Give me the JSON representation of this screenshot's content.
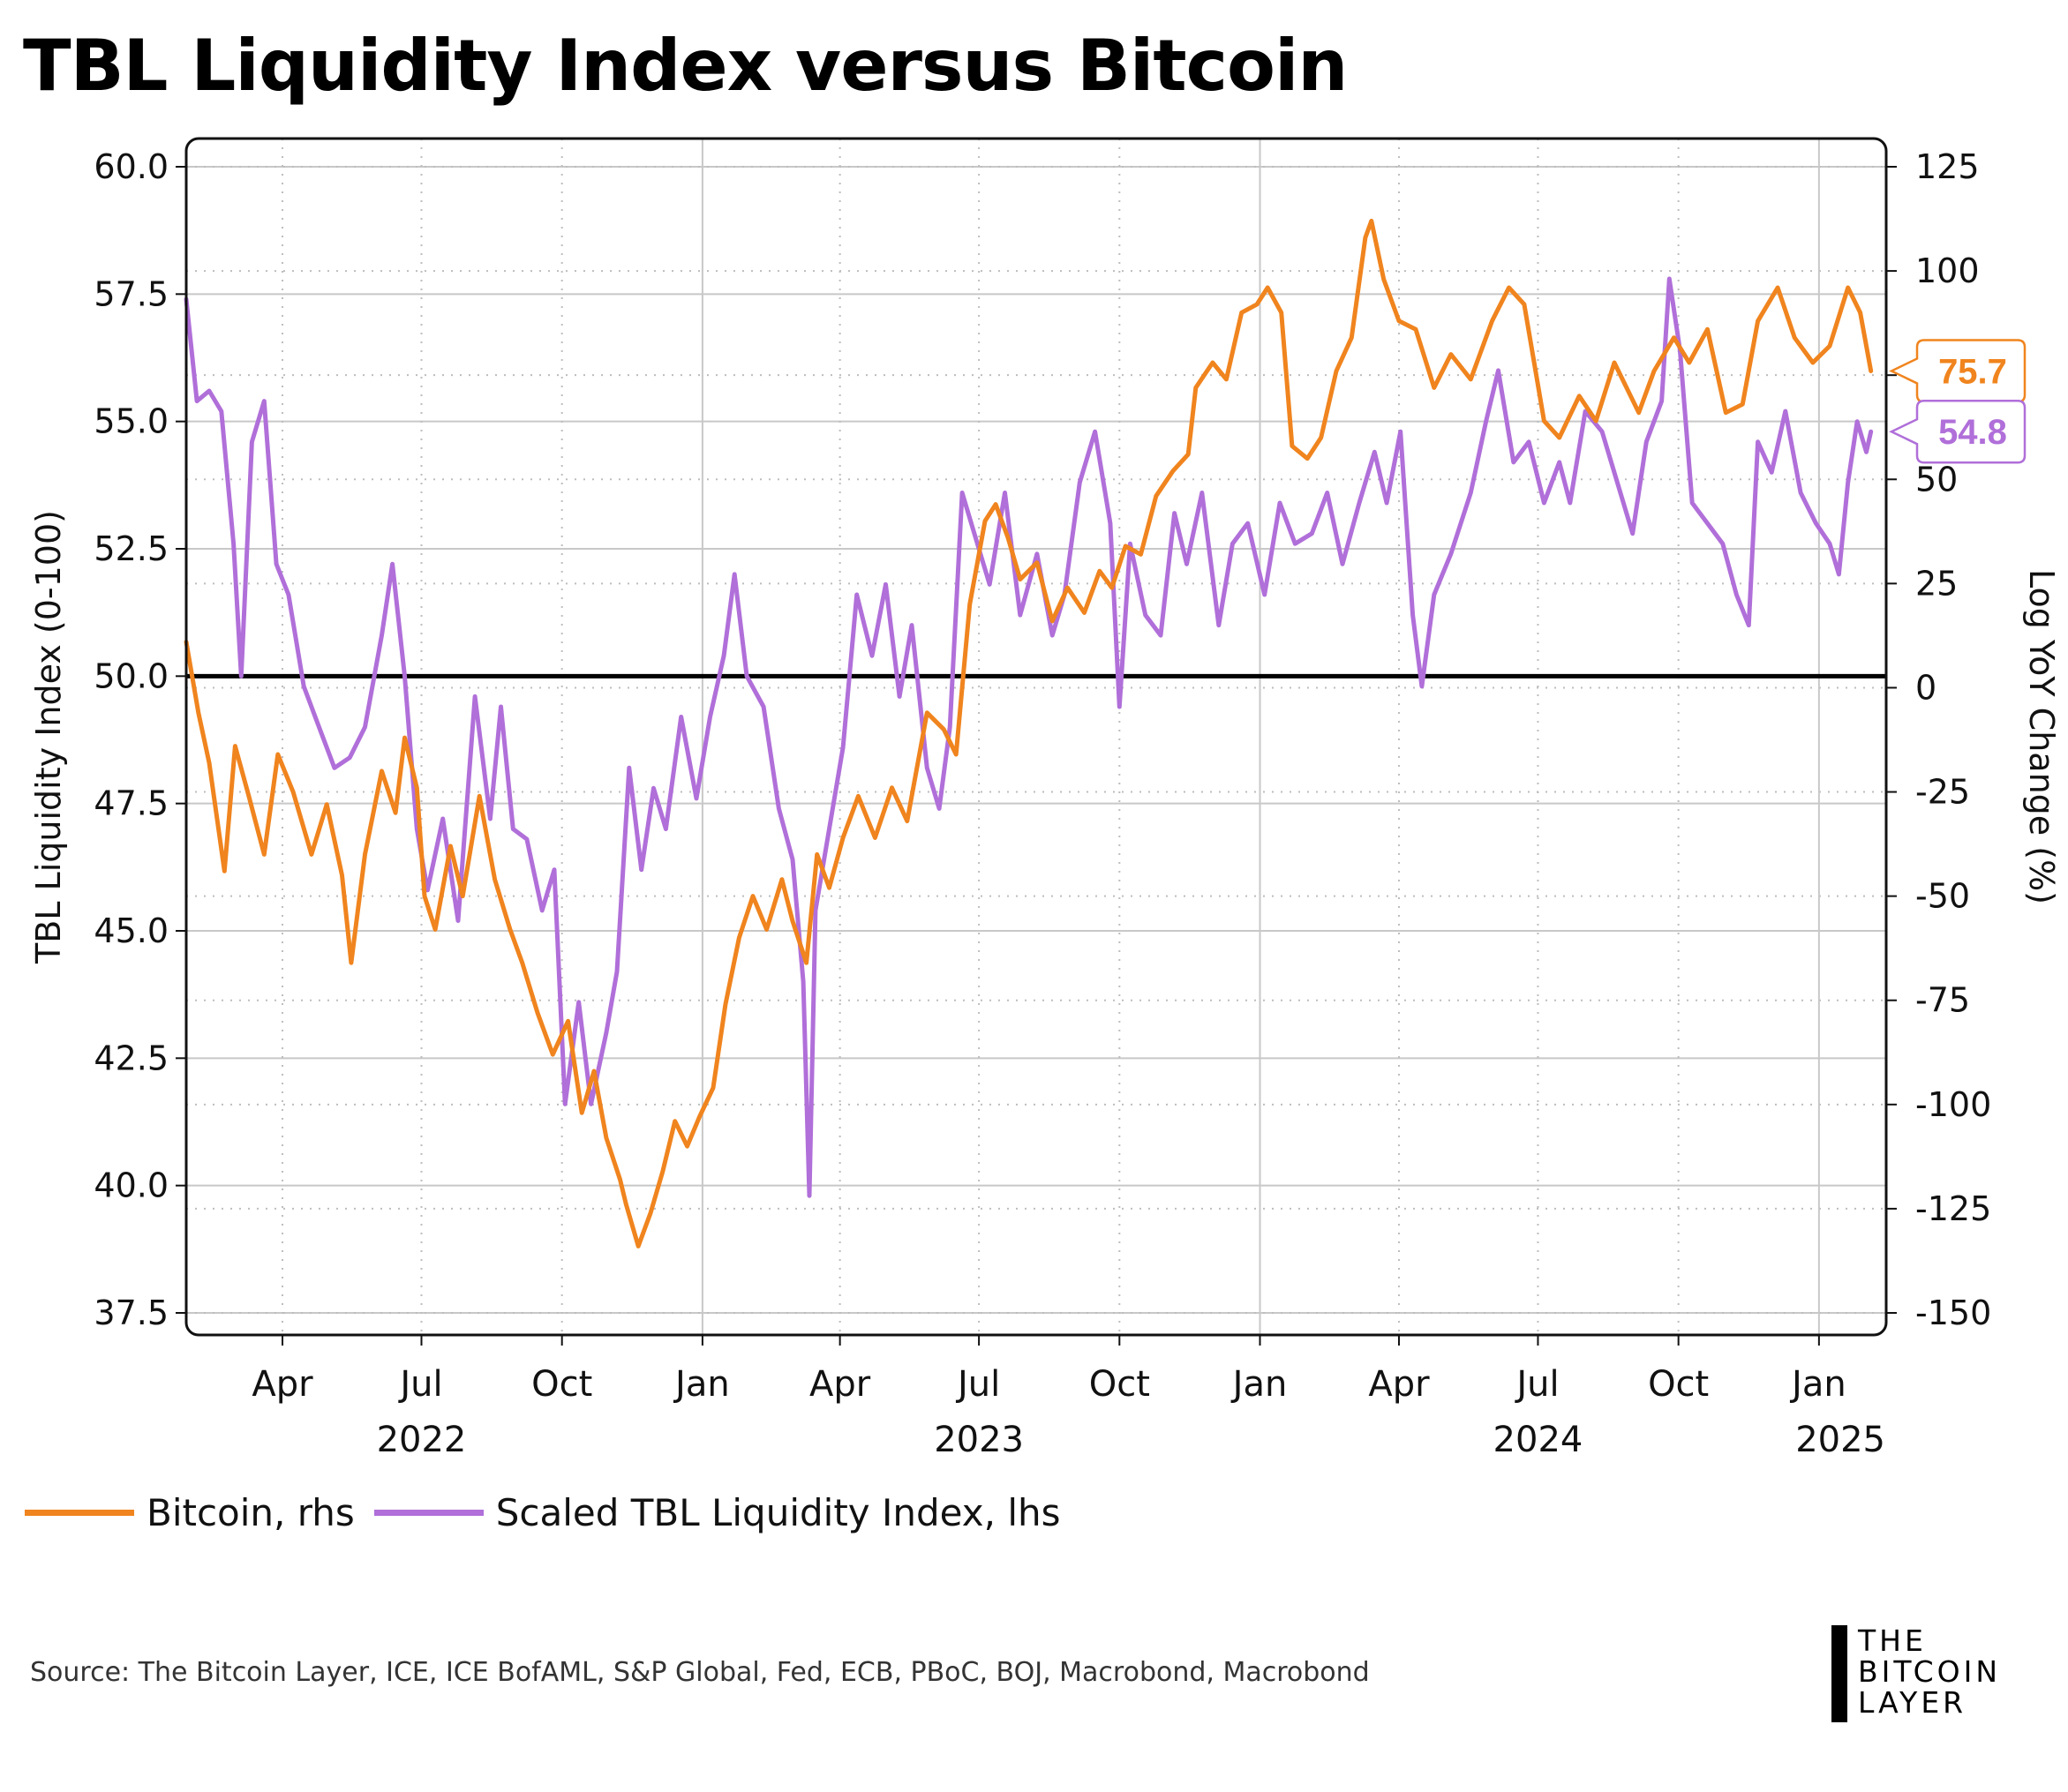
{
  "title": "TBL Liquidity Index versus Bitcoin",
  "legend": [
    {
      "label": "Bitcoin, rhs",
      "color": "#F0841E"
    },
    {
      "label": "Scaled TBL Liquidity Index, lhs",
      "color": "#B06FD9"
    }
  ],
  "source": "Source: The Bitcoin Layer, ICE, ICE BofAML, S&P Global, Fed, ECB, PBoC, BOJ, Macrobond, Macrobond",
  "logo": [
    "THE",
    "BITCOIN",
    "LAYER"
  ],
  "chart_data": {
    "type": "line",
    "title": "TBL Liquidity Index versus Bitcoin",
    "ylabel_left": "TBL Liquidity Index (0-100)",
    "ylabel_right": "Log YoY Change (%)",
    "ylim_left": [
      37.5,
      60.0
    ],
    "ylim_right": [
      -150,
      125
    ],
    "yticks_left": [
      "60.0",
      "57.5",
      "55.0",
      "52.5",
      "50.0",
      "47.5",
      "45.0",
      "42.5",
      "40.0",
      "37.5"
    ],
    "yticks_right": [
      "125",
      "100",
      "75",
      "50",
      "25",
      "0",
      "-25",
      "-50",
      "-75",
      "-100",
      "-125",
      "-150"
    ],
    "xlim": [
      "2022-01-28",
      "2025-02-14"
    ],
    "xticks": [
      {
        "date": "2022-04-01",
        "label": "Apr"
      },
      {
        "date": "2022-07-01",
        "label": "Jul"
      },
      {
        "date": "2022-10-01",
        "label": "Oct"
      },
      {
        "date": "2023-01-01",
        "label": "Jan"
      },
      {
        "date": "2023-04-01",
        "label": "Apr"
      },
      {
        "date": "2023-07-01",
        "label": "Jul"
      },
      {
        "date": "2023-10-01",
        "label": "Oct"
      },
      {
        "date": "2024-01-01",
        "label": "Jan"
      },
      {
        "date": "2024-04-01",
        "label": "Apr"
      },
      {
        "date": "2024-07-01",
        "label": "Jul"
      },
      {
        "date": "2024-10-01",
        "label": "Oct"
      },
      {
        "date": "2025-01-01",
        "label": "Jan"
      }
    ],
    "year_labels": [
      {
        "date": "2022-07-01",
        "label": "2022"
      },
      {
        "date": "2023-07-01",
        "label": "2023"
      },
      {
        "date": "2024-07-01",
        "label": "2024"
      },
      {
        "date": "2025-01-15",
        "label": "2025"
      }
    ],
    "reference_line": {
      "axis": "left",
      "value": 50.0
    },
    "grid": true,
    "legend_position": "bottom-left",
    "series": [
      {
        "name": "Bitcoin, rhs",
        "axis": "right",
        "color": "#F0841E",
        "last_value_label": "75.7",
        "points": [
          [
            "2022-01-28",
            11
          ],
          [
            "2022-02-05",
            -6
          ],
          [
            "2022-02-12",
            -18
          ],
          [
            "2022-02-22",
            -44
          ],
          [
            "2022-03-01",
            -14
          ],
          [
            "2022-03-10",
            -26
          ],
          [
            "2022-03-20",
            -40
          ],
          [
            "2022-03-29",
            -16
          ],
          [
            "2022-04-08",
            -25
          ],
          [
            "2022-04-20",
            -40
          ],
          [
            "2022-04-30",
            -28
          ],
          [
            "2022-05-10",
            -45
          ],
          [
            "2022-05-16",
            -66
          ],
          [
            "2022-05-25",
            -40
          ],
          [
            "2022-06-05",
            -20
          ],
          [
            "2022-06-14",
            -30
          ],
          [
            "2022-06-20",
            -12
          ],
          [
            "2022-06-28",
            -24
          ],
          [
            "2022-07-03",
            -50
          ],
          [
            "2022-07-10",
            -58
          ],
          [
            "2022-07-20",
            -38
          ],
          [
            "2022-07-28",
            -50
          ],
          [
            "2022-08-08",
            -26
          ],
          [
            "2022-08-18",
            -46
          ],
          [
            "2022-08-28",
            -58
          ],
          [
            "2022-09-05",
            -66
          ],
          [
            "2022-09-15",
            -78
          ],
          [
            "2022-09-25",
            -88
          ],
          [
            "2022-10-05",
            -80
          ],
          [
            "2022-10-14",
            -102
          ],
          [
            "2022-10-22",
            -92
          ],
          [
            "2022-10-30",
            -108
          ],
          [
            "2022-11-08",
            -118
          ],
          [
            "2022-11-12",
            -124
          ],
          [
            "2022-11-20",
            -134
          ],
          [
            "2022-11-28",
            -126
          ],
          [
            "2022-12-06",
            -116
          ],
          [
            "2022-12-14",
            -104
          ],
          [
            "2022-12-22",
            -110
          ],
          [
            "2022-12-30",
            -103
          ],
          [
            "2023-01-08",
            -96
          ],
          [
            "2023-01-16",
            -76
          ],
          [
            "2023-01-25",
            -60
          ],
          [
            "2023-02-03",
            -50
          ],
          [
            "2023-02-12",
            -58
          ],
          [
            "2023-02-22",
            -46
          ],
          [
            "2023-03-01",
            -56
          ],
          [
            "2023-03-10",
            -66
          ],
          [
            "2023-03-17",
            -40
          ],
          [
            "2023-03-25",
            -48
          ],
          [
            "2023-04-03",
            -36
          ],
          [
            "2023-04-13",
            -26
          ],
          [
            "2023-04-24",
            -36
          ],
          [
            "2023-05-05",
            -24
          ],
          [
            "2023-05-15",
            -32
          ],
          [
            "2023-05-28",
            -6
          ],
          [
            "2023-06-08",
            -10
          ],
          [
            "2023-06-16",
            -16
          ],
          [
            "2023-06-25",
            20
          ],
          [
            "2023-07-05",
            40
          ],
          [
            "2023-07-12",
            44
          ],
          [
            "2023-07-20",
            36
          ],
          [
            "2023-07-28",
            26
          ],
          [
            "2023-08-08",
            30
          ],
          [
            "2023-08-18",
            16
          ],
          [
            "2023-08-28",
            24
          ],
          [
            "2023-09-08",
            18
          ],
          [
            "2023-09-18",
            28
          ],
          [
            "2023-09-26",
            24
          ],
          [
            "2023-10-05",
            34
          ],
          [
            "2023-10-15",
            32
          ],
          [
            "2023-10-25",
            46
          ],
          [
            "2023-11-05",
            52
          ],
          [
            "2023-11-15",
            56
          ],
          [
            "2023-11-20",
            72
          ],
          [
            "2023-12-01",
            78
          ],
          [
            "2023-12-10",
            74
          ],
          [
            "2023-12-20",
            90
          ],
          [
            "2023-12-30",
            92
          ],
          [
            "2024-01-06",
            96
          ],
          [
            "2024-01-15",
            90
          ],
          [
            "2024-01-22",
            58
          ],
          [
            "2024-02-01",
            55
          ],
          [
            "2024-02-10",
            60
          ],
          [
            "2024-02-20",
            76
          ],
          [
            "2024-03-01",
            84
          ],
          [
            "2024-03-10",
            108
          ],
          [
            "2024-03-14",
            112
          ],
          [
            "2024-03-22",
            98
          ],
          [
            "2024-04-01",
            88
          ],
          [
            "2024-04-12",
            86
          ],
          [
            "2024-04-24",
            72
          ],
          [
            "2024-05-05",
            80
          ],
          [
            "2024-05-18",
            74
          ],
          [
            "2024-06-01",
            88
          ],
          [
            "2024-06-12",
            96
          ],
          [
            "2024-06-22",
            92
          ],
          [
            "2024-07-05",
            64
          ],
          [
            "2024-07-15",
            60
          ],
          [
            "2024-07-28",
            70
          ],
          [
            "2024-08-08",
            64
          ],
          [
            "2024-08-20",
            78
          ],
          [
            "2024-09-05",
            66
          ],
          [
            "2024-09-15",
            76
          ],
          [
            "2024-09-28",
            84
          ],
          [
            "2024-10-08",
            78
          ],
          [
            "2024-10-20",
            86
          ],
          [
            "2024-11-01",
            66
          ],
          [
            "2024-11-12",
            68
          ],
          [
            "2024-11-22",
            88
          ],
          [
            "2024-12-05",
            96
          ],
          [
            "2024-12-16",
            84
          ],
          [
            "2024-12-28",
            78
          ],
          [
            "2025-01-08",
            82
          ],
          [
            "2025-01-20",
            96
          ],
          [
            "2025-01-28",
            90
          ],
          [
            "2025-02-04",
            76
          ]
        ]
      },
      {
        "name": "Scaled TBL Liquidity Index, lhs",
        "axis": "left",
        "color": "#B06FD9",
        "last_value_label": "54.8",
        "points": [
          [
            "2022-01-28",
            57.4
          ],
          [
            "2022-02-04",
            55.4
          ],
          [
            "2022-02-12",
            55.6
          ],
          [
            "2022-02-20",
            55.2
          ],
          [
            "2022-02-28",
            52.6
          ],
          [
            "2022-03-05",
            50.0
          ],
          [
            "2022-03-12",
            54.6
          ],
          [
            "2022-03-20",
            55.4
          ],
          [
            "2022-03-28",
            52.2
          ],
          [
            "2022-04-05",
            51.6
          ],
          [
            "2022-04-15",
            49.8
          ],
          [
            "2022-04-25",
            49.0
          ],
          [
            "2022-05-05",
            48.2
          ],
          [
            "2022-05-15",
            48.4
          ],
          [
            "2022-05-25",
            49.0
          ],
          [
            "2022-06-05",
            50.8
          ],
          [
            "2022-06-12",
            52.2
          ],
          [
            "2022-06-20",
            50.0
          ],
          [
            "2022-06-28",
            47.0
          ],
          [
            "2022-07-05",
            45.8
          ],
          [
            "2022-07-15",
            47.2
          ],
          [
            "2022-07-25",
            45.2
          ],
          [
            "2022-08-05",
            49.6
          ],
          [
            "2022-08-15",
            47.2
          ],
          [
            "2022-08-22",
            49.4
          ],
          [
            "2022-08-30",
            47.0
          ],
          [
            "2022-09-08",
            46.8
          ],
          [
            "2022-09-18",
            45.4
          ],
          [
            "2022-09-26",
            46.2
          ],
          [
            "2022-10-03",
            41.6
          ],
          [
            "2022-10-12",
            43.6
          ],
          [
            "2022-10-20",
            41.6
          ],
          [
            "2022-10-30",
            43.0
          ],
          [
            "2022-11-06",
            44.2
          ],
          [
            "2022-11-14",
            48.2
          ],
          [
            "2022-11-22",
            46.2
          ],
          [
            "2022-11-30",
            47.8
          ],
          [
            "2022-12-08",
            47.0
          ],
          [
            "2022-12-18",
            49.2
          ],
          [
            "2022-12-28",
            47.6
          ],
          [
            "2023-01-06",
            49.2
          ],
          [
            "2023-01-15",
            50.4
          ],
          [
            "2023-01-22",
            52.0
          ],
          [
            "2023-01-30",
            50.0
          ],
          [
            "2023-02-10",
            49.4
          ],
          [
            "2023-02-20",
            47.4
          ],
          [
            "2023-03-01",
            46.4
          ],
          [
            "2023-03-08",
            44.0
          ],
          [
            "2023-03-12",
            39.8
          ],
          [
            "2023-03-16",
            45.4
          ],
          [
            "2023-03-25",
            47.0
          ],
          [
            "2023-04-03",
            48.6
          ],
          [
            "2023-04-12",
            51.6
          ],
          [
            "2023-04-22",
            50.4
          ],
          [
            "2023-05-01",
            51.8
          ],
          [
            "2023-05-10",
            49.6
          ],
          [
            "2023-05-18",
            51.0
          ],
          [
            "2023-05-28",
            48.2
          ],
          [
            "2023-06-05",
            47.4
          ],
          [
            "2023-06-12",
            49.0
          ],
          [
            "2023-06-20",
            53.6
          ],
          [
            "2023-06-28",
            52.8
          ],
          [
            "2023-07-08",
            51.8
          ],
          [
            "2023-07-18",
            53.6
          ],
          [
            "2023-07-28",
            51.2
          ],
          [
            "2023-08-08",
            52.4
          ],
          [
            "2023-08-18",
            50.8
          ],
          [
            "2023-08-26",
            51.6
          ],
          [
            "2023-09-05",
            53.8
          ],
          [
            "2023-09-15",
            54.8
          ],
          [
            "2023-09-25",
            53.0
          ],
          [
            "2023-10-01",
            49.4
          ],
          [
            "2023-10-08",
            52.6
          ],
          [
            "2023-10-18",
            51.2
          ],
          [
            "2023-10-28",
            50.8
          ],
          [
            "2023-11-06",
            53.2
          ],
          [
            "2023-11-14",
            52.2
          ],
          [
            "2023-11-24",
            53.6
          ],
          [
            "2023-12-05",
            51.0
          ],
          [
            "2023-12-14",
            52.6
          ],
          [
            "2023-12-24",
            53.0
          ],
          [
            "2024-01-04",
            51.6
          ],
          [
            "2024-01-14",
            53.4
          ],
          [
            "2024-01-24",
            52.6
          ],
          [
            "2024-02-04",
            52.8
          ],
          [
            "2024-02-14",
            53.6
          ],
          [
            "2024-02-24",
            52.2
          ],
          [
            "2024-03-06",
            53.4
          ],
          [
            "2024-03-16",
            54.4
          ],
          [
            "2024-03-24",
            53.4
          ],
          [
            "2024-04-02",
            54.8
          ],
          [
            "2024-04-10",
            51.2
          ],
          [
            "2024-04-16",
            49.8
          ],
          [
            "2024-04-24",
            51.6
          ],
          [
            "2024-05-05",
            52.4
          ],
          [
            "2024-05-18",
            53.6
          ],
          [
            "2024-05-28",
            55.0
          ],
          [
            "2024-06-05",
            56.0
          ],
          [
            "2024-06-15",
            54.2
          ],
          [
            "2024-06-25",
            54.6
          ],
          [
            "2024-07-05",
            53.4
          ],
          [
            "2024-07-15",
            54.2
          ],
          [
            "2024-07-22",
            53.4
          ],
          [
            "2024-08-01",
            55.2
          ],
          [
            "2024-08-12",
            54.8
          ],
          [
            "2024-08-22",
            53.8
          ],
          [
            "2024-09-01",
            52.8
          ],
          [
            "2024-09-10",
            54.6
          ],
          [
            "2024-09-20",
            55.4
          ],
          [
            "2024-09-25",
            57.8
          ],
          [
            "2024-10-02",
            56.4
          ],
          [
            "2024-10-10",
            53.4
          ],
          [
            "2024-10-20",
            53.0
          ],
          [
            "2024-10-30",
            52.6
          ],
          [
            "2024-11-08",
            51.6
          ],
          [
            "2024-11-16",
            51.0
          ],
          [
            "2024-11-22",
            54.6
          ],
          [
            "2024-12-01",
            54.0
          ],
          [
            "2024-12-10",
            55.2
          ],
          [
            "2024-12-20",
            53.6
          ],
          [
            "2024-12-30",
            53.0
          ],
          [
            "2025-01-08",
            52.6
          ],
          [
            "2025-01-14",
            52.0
          ],
          [
            "2025-01-20",
            53.8
          ],
          [
            "2025-01-26",
            55.0
          ],
          [
            "2025-02-01",
            54.4
          ],
          [
            "2025-02-04",
            54.8
          ]
        ]
      }
    ]
  }
}
